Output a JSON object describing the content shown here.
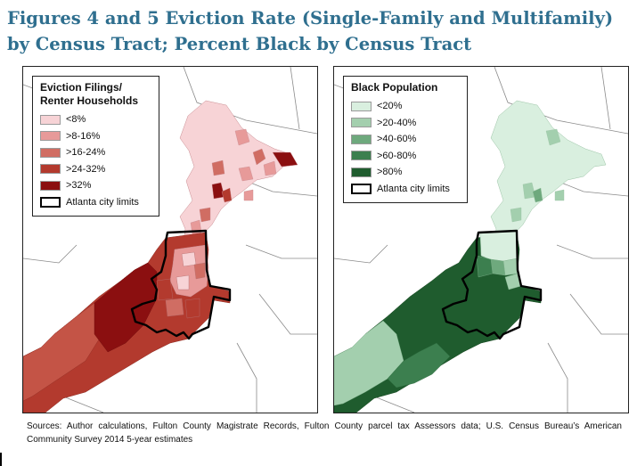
{
  "figure": {
    "title": "Figures 4 and 5 Eviction Rate (Single-Family and Multifamily) by Census Tract; Percent Black by Census Tract",
    "source": "Sources: Author calculations, Fulton County Magistrate Records, Fulton County parcel tax Assessors data; U.S. Census Bureau’s American Community Survey 2014 5-year estimates"
  },
  "maps": {
    "left": {
      "legend_title": "Eviction Filings/ Renter Households",
      "legend_items": [
        {
          "label": "<8%",
          "color": "#f7d3d6"
        },
        {
          "label": ">8-16%",
          "color": "#e79a99"
        },
        {
          "label": ">16-24%",
          "color": "#d06d63"
        },
        {
          "label": ">24-32%",
          "color": "#b33a2e"
        },
        {
          "label": ">32%",
          "color": "#8b0f10"
        }
      ],
      "city_limits_label": "Atlanta city limits"
    },
    "right": {
      "legend_title": "Black Population",
      "legend_items": [
        {
          "label": "<20%",
          "color": "#d9efdf"
        },
        {
          "label": ">20-40%",
          "color": "#a3cfae"
        },
        {
          "label": ">40-60%",
          "color": "#6ea97d"
        },
        {
          "label": ">60-80%",
          "color": "#3c7f4f"
        },
        {
          "label": ">80%",
          "color": "#1f5c2e"
        }
      ],
      "city_limits_label": "Atlanta city limits"
    }
  }
}
